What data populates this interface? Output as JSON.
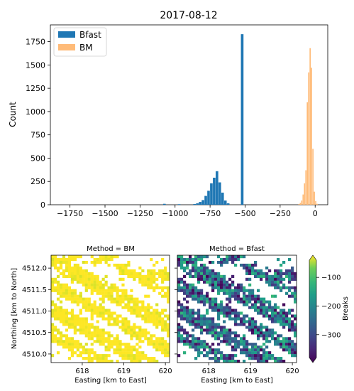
{
  "figure": {
    "title": "2017-08-12"
  },
  "chart_data": [
    {
      "type": "bar",
      "title": "2017-08-12",
      "xlabel": "",
      "ylabel": "Count",
      "xlim": [
        -1890,
        90
      ],
      "ylim": [
        0,
        1930
      ],
      "xticks": [
        -1750,
        -1500,
        -1250,
        -1000,
        -750,
        -500,
        -250,
        0
      ],
      "xtick_labels": [
        "−1750",
        "−1500",
        "−1250",
        "−1000",
        "−750",
        "−500",
        "−250",
        "0"
      ],
      "yticks": [
        0,
        250,
        500,
        750,
        1000,
        1250,
        1500,
        1750
      ],
      "ytick_labels": [
        "0",
        "250",
        "500",
        "750",
        "1000",
        "1250",
        "1500",
        "1750"
      ],
      "legend_position": "top-left",
      "series": [
        {
          "name": "Bfast",
          "color": "#1f77b4",
          "bins": [
            [
              -1085,
              -1065,
              10
            ],
            [
              -980,
              -960,
              6
            ],
            [
              -870,
              -850,
              8
            ],
            [
              -850,
              -830,
              15
            ],
            [
              -830,
              -810,
              30
            ],
            [
              -810,
              -790,
              50
            ],
            [
              -790,
              -770,
              95
            ],
            [
              -770,
              -750,
              150
            ],
            [
              -750,
              -730,
              230
            ],
            [
              -730,
              -710,
              290
            ],
            [
              -710,
              -690,
              360
            ],
            [
              -690,
              -670,
              240
            ],
            [
              -670,
              -650,
              130
            ],
            [
              -650,
              -630,
              45
            ],
            [
              -630,
              -610,
              15
            ],
            [
              -530,
              -510,
              1830
            ]
          ]
        },
        {
          "name": "BM",
          "color": "#ffbb78",
          "bins": [
            [
              -120,
              -110,
              8
            ],
            [
              -110,
              -100,
              20
            ],
            [
              -100,
              -90,
              45
            ],
            [
              -90,
              -80,
              110
            ],
            [
              -80,
              -70,
              230
            ],
            [
              -70,
              -60,
              370
            ],
            [
              -60,
              -50,
              1100
            ],
            [
              -50,
              -40,
              1420
            ],
            [
              -40,
              -30,
              1680
            ],
            [
              -30,
              -20,
              1470
            ],
            [
              -20,
              -10,
              600
            ],
            [
              -10,
              0,
              140
            ],
            [
              0,
              10,
              40
            ],
            [
              10,
              20,
              10
            ]
          ]
        }
      ]
    },
    {
      "type": "heatmap",
      "title": "Method = BM",
      "xlabel": "Easting [km to East]",
      "ylabel": "Northing [km to North]",
      "xlim": [
        617.25,
        620.1
      ],
      "ylim": [
        4509.8,
        4512.3
      ],
      "xticks": [
        618,
        619,
        620
      ],
      "yticks": [
        4510.0,
        4510.5,
        4511.0,
        4511.5,
        4512.0
      ],
      "ytick_labels": [
        "4510.0",
        "4510.5",
        "4511.0",
        "4511.5",
        "4512.0"
      ],
      "value_range": [
        -60,
        -10
      ],
      "note_colormap": "viridis"
    },
    {
      "type": "heatmap",
      "title": "Method = Bfast",
      "xlabel": "Easting [km to East]",
      "ylabel": "",
      "xlim": [
        617.25,
        620.1
      ],
      "ylim": [
        4509.8,
        4512.3
      ],
      "xticks": [
        618,
        619,
        620
      ],
      "value_range": [
        -380,
        -150
      ],
      "colorbar": {
        "label": "Breaks",
        "range": [
          -380,
          -40
        ],
        "ticks": [
          -100,
          -200,
          -300
        ],
        "tick_labels": [
          "−100",
          "−200",
          "−300"
        ]
      }
    }
  ]
}
